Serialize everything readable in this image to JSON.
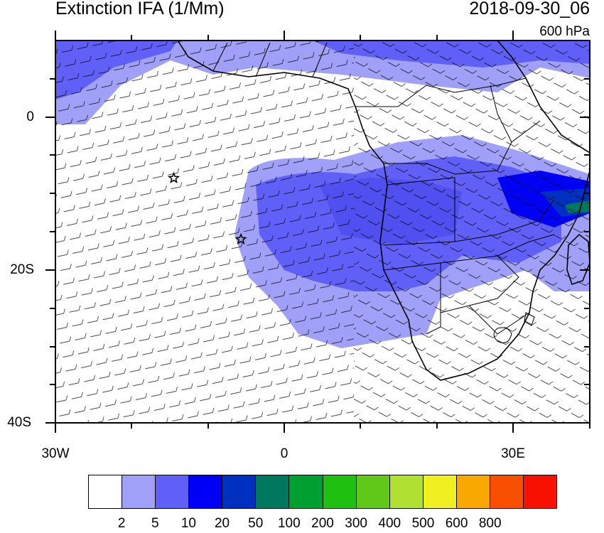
{
  "title": "Extinction IFA (1/Mm)",
  "datetime": "2018-09-30_06",
  "level": "600 hPa",
  "map": {
    "lon_range": [
      -30,
      40
    ],
    "lat_range": [
      -40,
      10
    ],
    "y_ticks": [
      "0",
      "20S",
      "40S"
    ],
    "x_ticks": [
      "30W",
      "0",
      "30E"
    ],
    "ocean_color": "#ffffff",
    "coast_color": "#000000",
    "markers": [
      {
        "name": "star",
        "lon": -14.5,
        "lat": -8
      },
      {
        "name": "star",
        "lon": -5.7,
        "lat": -16
      }
    ]
  },
  "colorbar": {
    "colors": [
      "#ffffff",
      "#a0a0f8",
      "#6060f8",
      "#0000f8",
      "#0030c0",
      "#007860",
      "#00a030",
      "#20c010",
      "#60c818",
      "#b0e030",
      "#f0f020",
      "#f8a800",
      "#f85000",
      "#f81000"
    ],
    "labels": [
      "2",
      "5",
      "10",
      "20",
      "50",
      "100",
      "200",
      "300",
      "400",
      "500",
      "600",
      "800"
    ]
  }
}
